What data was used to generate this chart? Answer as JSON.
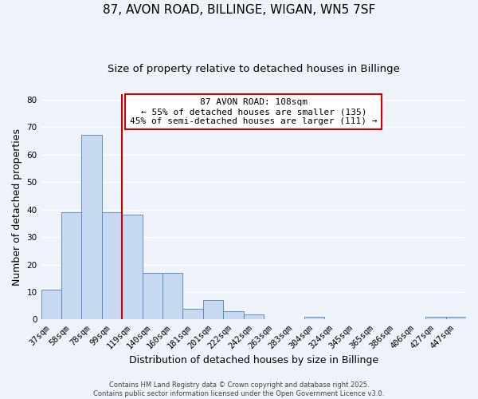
{
  "title": "87, AVON ROAD, BILLINGE, WIGAN, WN5 7SF",
  "subtitle": "Size of property relative to detached houses in Billinge",
  "xlabel": "Distribution of detached houses by size in Billinge",
  "ylabel": "Number of detached properties",
  "categories": [
    "37sqm",
    "58sqm",
    "78sqm",
    "99sqm",
    "119sqm",
    "140sqm",
    "160sqm",
    "181sqm",
    "201sqm",
    "222sqm",
    "242sqm",
    "263sqm",
    "283sqm",
    "304sqm",
    "324sqm",
    "345sqm",
    "365sqm",
    "386sqm",
    "406sqm",
    "427sqm",
    "447sqm"
  ],
  "values": [
    11,
    39,
    67,
    39,
    38,
    17,
    17,
    4,
    7,
    3,
    2,
    0,
    0,
    1,
    0,
    0,
    0,
    0,
    0,
    1,
    1
  ],
  "bar_color": "#c6d9f0",
  "bar_edge_color": "#4f81bd",
  "vline_x": 3.5,
  "vline_color": "#cc0000",
  "annotation_text": "87 AVON ROAD: 108sqm\n← 55% of detached houses are smaller (135)\n45% of semi-detached houses are larger (111) →",
  "annotation_box_color": "#ffffff",
  "annotation_box_edge": "#cc0000",
  "ylim": [
    0,
    82
  ],
  "yticks": [
    0,
    10,
    20,
    30,
    40,
    50,
    60,
    70,
    80
  ],
  "footer_line1": "Contains HM Land Registry data © Crown copyright and database right 2025.",
  "footer_line2": "Contains public sector information licensed under the Open Government Licence v3.0.",
  "background_color": "#eef2f9",
  "grid_color": "#ffffff",
  "title_fontsize": 11,
  "subtitle_fontsize": 9.5,
  "tick_fontsize": 7.5,
  "label_fontsize": 9,
  "footer_fontsize": 6,
  "ann_fontsize": 8
}
